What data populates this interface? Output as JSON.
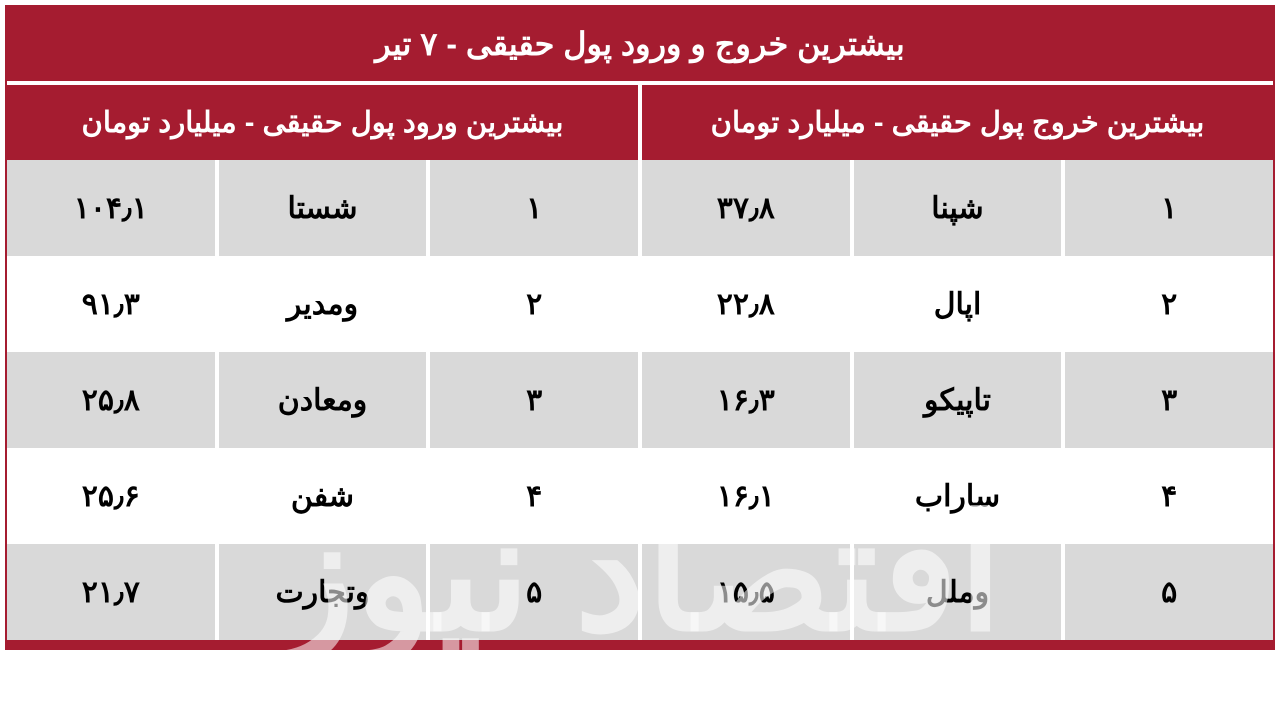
{
  "table": {
    "type": "table",
    "title": "بیشترین خروج و ورود پول حقیقی - ۷ تیر",
    "title_bg": "#a51c30",
    "title_color": "#ffffff",
    "title_fontsize": 32,
    "border_color": "#a51c30",
    "grid_color": "#ffffff",
    "row_bg_odd": "#d9d9d9",
    "row_bg_even": "#ffffff",
    "cell_text_color": "#000000",
    "cell_fontsize": 30,
    "header_fontsize": 29,
    "columns_right": "بیشترین خروج پول حقیقی - میلیارد تومان",
    "columns_left": "بیشترین ورود پول حقیقی - میلیارد تومان",
    "rows": [
      {
        "rank_out": "۱",
        "sym_out": "شپنا",
        "val_out": "۳۷٫۸",
        "rank_in": "۱",
        "sym_in": "شستا",
        "val_in": "۱۰۴٫۱"
      },
      {
        "rank_out": "۲",
        "sym_out": "اپال",
        "val_out": "۲۲٫۸",
        "rank_in": "۲",
        "sym_in": "ومدیر",
        "val_in": "۹۱٫۳"
      },
      {
        "rank_out": "۳",
        "sym_out": "تاپیکو",
        "val_out": "۱۶٫۳",
        "rank_in": "۳",
        "sym_in": "ومعادن",
        "val_in": "۲۵٫۸"
      },
      {
        "rank_out": "۴",
        "sym_out": "ساراب",
        "val_out": "۱۶٫۱",
        "rank_in": "۴",
        "sym_in": "شفن",
        "val_in": "۲۵٫۶"
      },
      {
        "rank_out": "۵",
        "sym_out": "وملل",
        "val_out": "۱۵٫۵",
        "rank_in": "۵",
        "sym_in": "وتجارت",
        "val_in": "۲۱٫۷"
      }
    ],
    "watermark_text": "اقتصاد نیوز"
  }
}
